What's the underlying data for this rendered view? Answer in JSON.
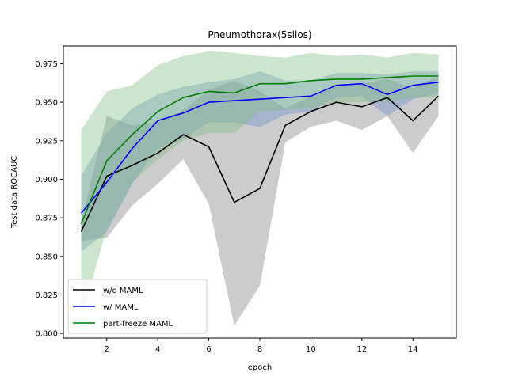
{
  "chart_data": {
    "type": "line",
    "title": "Pneumothorax(5silos)",
    "xlabel": "epoch",
    "ylabel": "Test data ROCAUC",
    "xlim": [
      0.3,
      15.7
    ],
    "ylim": [
      0.797,
      0.9865
    ],
    "xticks": [
      2,
      4,
      6,
      8,
      10,
      12,
      14
    ],
    "yticks": [
      0.8,
      0.825,
      0.85,
      0.875,
      0.9,
      0.925,
      0.95,
      0.975
    ],
    "ytick_labels": [
      "0.800",
      "0.825",
      "0.850",
      "0.875",
      "0.900",
      "0.925",
      "0.950",
      "0.975"
    ],
    "legend_position": "lower-left",
    "x": [
      1,
      2,
      3,
      4,
      5,
      6,
      7,
      8,
      9,
      10,
      11,
      12,
      13,
      14,
      15
    ],
    "series": [
      {
        "name": "w/o MAML",
        "color": "#000000",
        "band_color": "#808080",
        "values": [
          0.866,
          0.902,
          0.909,
          0.917,
          0.929,
          0.921,
          0.885,
          0.894,
          0.935,
          0.944,
          0.95,
          0.947,
          0.953,
          0.938,
          0.954
        ],
        "lower": [
          0.86,
          0.862,
          0.883,
          0.897,
          0.913,
          0.884,
          0.805,
          0.831,
          0.924,
          0.934,
          0.938,
          0.932,
          0.941,
          0.917,
          0.941
        ],
        "upper": [
          0.872,
          0.941,
          0.935,
          0.937,
          0.945,
          0.958,
          0.964,
          0.957,
          0.946,
          0.954,
          0.961,
          0.962,
          0.965,
          0.959,
          0.967
        ]
      },
      {
        "name": "w/ MAML",
        "color": "#0000ff",
        "band_color": "#6f90cf",
        "values": [
          0.878,
          0.898,
          0.92,
          0.938,
          0.943,
          0.95,
          0.951,
          0.952,
          0.953,
          0.954,
          0.961,
          0.962,
          0.955,
          0.961,
          0.963
        ],
        "lower": [
          0.853,
          0.866,
          0.897,
          0.92,
          0.926,
          0.937,
          0.937,
          0.934,
          0.942,
          0.944,
          0.953,
          0.954,
          0.941,
          0.952,
          0.956
        ],
        "upper": [
          0.902,
          0.93,
          0.946,
          0.955,
          0.96,
          0.963,
          0.965,
          0.97,
          0.964,
          0.964,
          0.969,
          0.969,
          0.968,
          0.97,
          0.97
        ]
      },
      {
        "name": "part-freeze MAML",
        "color": "#008000",
        "band_color": "#7fbf7f",
        "values": [
          0.871,
          0.912,
          0.929,
          0.944,
          0.953,
          0.957,
          0.956,
          0.962,
          0.962,
          0.964,
          0.965,
          0.965,
          0.966,
          0.967,
          0.967
        ],
        "lower": [
          0.81,
          0.868,
          0.898,
          0.913,
          0.925,
          0.93,
          0.93,
          0.944,
          0.945,
          0.946,
          0.95,
          0.95,
          0.95,
          0.953,
          0.953
        ],
        "upper": [
          0.932,
          0.957,
          0.961,
          0.974,
          0.98,
          0.983,
          0.982,
          0.98,
          0.979,
          0.982,
          0.98,
          0.981,
          0.979,
          0.982,
          0.981
        ]
      }
    ]
  }
}
